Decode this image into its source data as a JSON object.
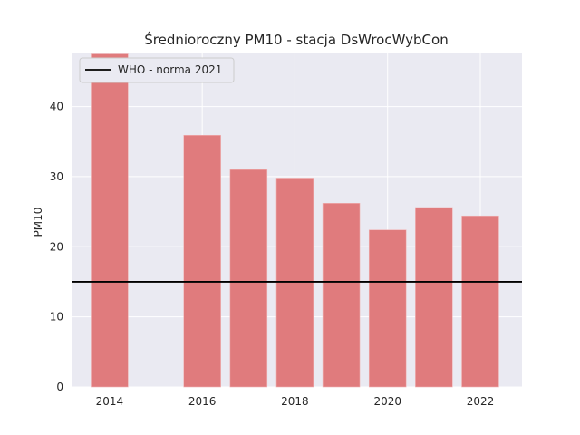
{
  "chart_data": {
    "type": "bar",
    "title": "Średnioroczny PM10 - stacja DsWrocWybCon",
    "xlabel": "",
    "ylabel": "PM10",
    "x": [
      2014,
      2016,
      2017,
      2018,
      2019,
      2020,
      2021,
      2022
    ],
    "values": [
      47.5,
      35.9,
      31.0,
      29.8,
      26.2,
      22.4,
      25.6,
      24.4
    ],
    "xlim": [
      2013.2,
      2022.9
    ],
    "ylim": [
      0,
      47.7
    ],
    "xticks": [
      2014,
      2016,
      2018,
      2020,
      2022
    ],
    "yticks": [
      0,
      10,
      20,
      30,
      40
    ],
    "bar_color": "#e07b7d",
    "background": "#eaeaf2",
    "grid": true,
    "reference_line": {
      "label": "WHO - norma 2021",
      "value": 15,
      "color": "#000000"
    },
    "legend": {
      "position": "top-left",
      "entries": [
        "WHO - norma 2021"
      ]
    }
  }
}
